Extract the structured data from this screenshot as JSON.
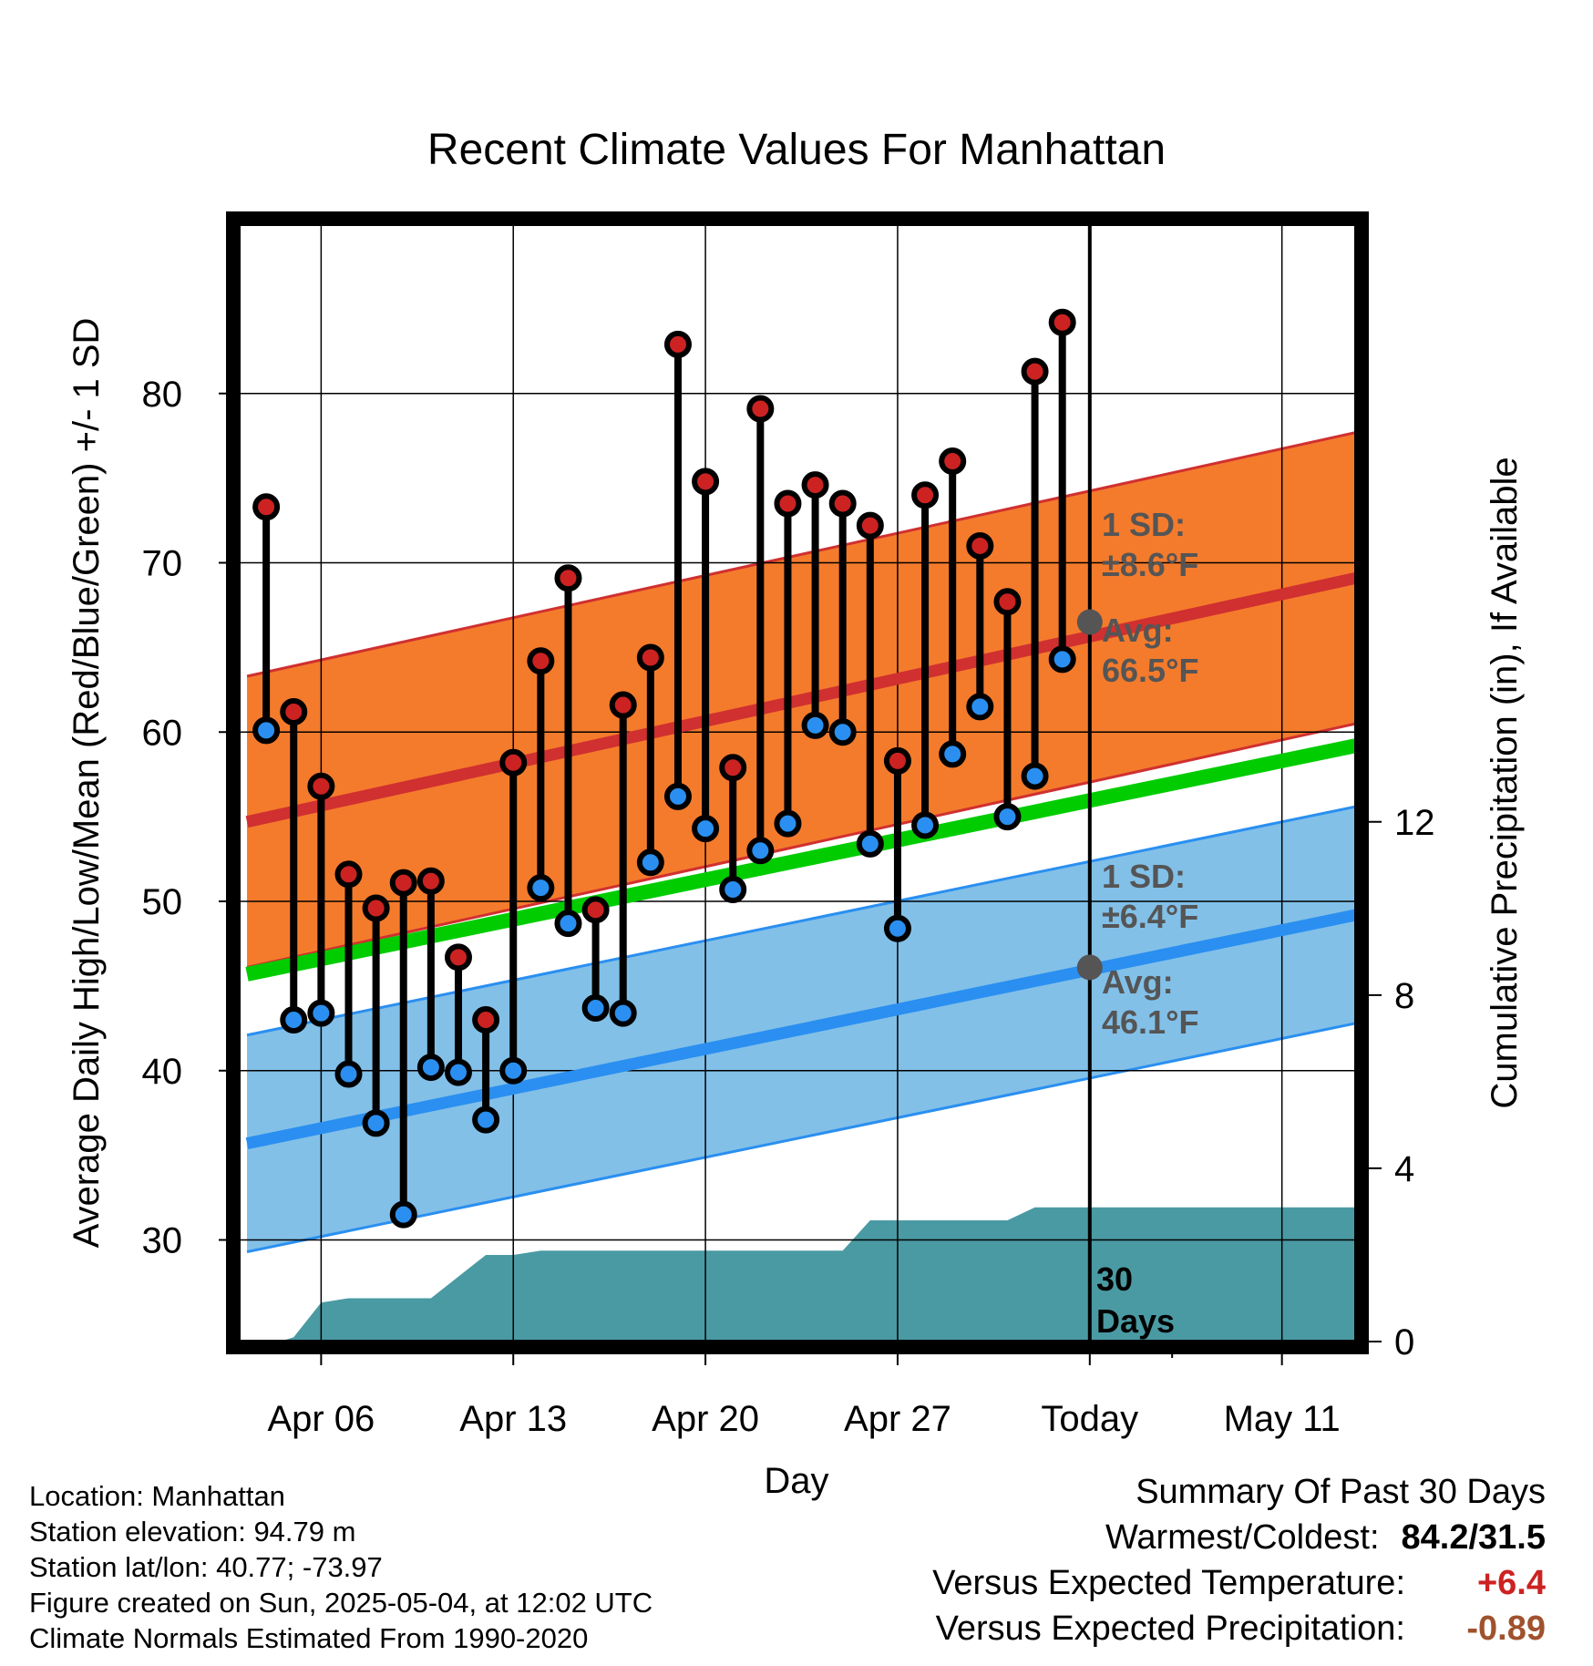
{
  "chart_data": {
    "type": "line",
    "title": "Recent Climate Values For Manhattan",
    "xlabel": "Day",
    "ylabel": "Average Daily High/Low/Mean (Red/Blue/Green) +/- 1 SD",
    "y2label": "Cumulative Precipitation (in), If Available",
    "ylim": [
      24,
      90
    ],
    "y2lim": [
      0,
      25.8
    ],
    "y_ticks": [
      30,
      40,
      50,
      60,
      70,
      80
    ],
    "y2_ticks": [
      0,
      4,
      8,
      12
    ],
    "x_range": [
      0,
      40.7
    ],
    "x_ticks": [
      {
        "day": 3,
        "label": "Apr 06"
      },
      {
        "day": 10,
        "label": "Apr 13"
      },
      {
        "day": 17,
        "label": "Apr 20"
      },
      {
        "day": 24,
        "label": "Apr 27"
      },
      {
        "day": 31,
        "label": "Today"
      },
      {
        "day": 38,
        "label": "May 11"
      }
    ],
    "normals": {
      "day_range": [
        0.3,
        40.7
      ],
      "high_avg": [
        54.7,
        69.1
      ],
      "high_sd": 8.6,
      "low_avg": [
        35.7,
        49.2
      ],
      "low_sd": 6.4,
      "mean": [
        45.7,
        59.2
      ],
      "colors": {
        "high_band": "#f47b2c",
        "high_avg_line": "#d03030",
        "low_band": "#82c0e8",
        "low_avg_line": "#2a8ff0",
        "mean_line": "#00cc00",
        "precip": "#4a9aa3",
        "high_dot": "#cc2222",
        "low_dot": "#2a8ff0",
        "today_avg_dot": "#555555"
      }
    },
    "today_marker": {
      "day": 31,
      "label_top": "30",
      "label_bottom": "Days"
    },
    "high_sd_label": {
      "line1": "1 SD:",
      "line2": "±8.6°F",
      "avg1": "Avg:",
      "avg2": "66.5°F",
      "avg_value": 66.5
    },
    "low_sd_label": {
      "line1": "1 SD:",
      "line2": "±6.4°F",
      "avg1": "Avg:",
      "avg2": "46.1°F",
      "avg_value": 46.1
    },
    "days": [
      {
        "day": 1,
        "high": 73.3,
        "low": 60.1
      },
      {
        "day": 2,
        "high": 61.2,
        "low": 43.0
      },
      {
        "day": 3,
        "high": 56.8,
        "low": 43.4
      },
      {
        "day": 4,
        "high": 51.6,
        "low": 39.8
      },
      {
        "day": 5,
        "high": 49.6,
        "low": 36.9
      },
      {
        "day": 6,
        "high": 51.1,
        "low": 31.5
      },
      {
        "day": 7,
        "high": 51.2,
        "low": 40.2
      },
      {
        "day": 8,
        "high": 46.7,
        "low": 39.9
      },
      {
        "day": 9,
        "high": 43.0,
        "low": 37.1
      },
      {
        "day": 10,
        "high": 58.2,
        "low": 40.0
      },
      {
        "day": 11,
        "high": 64.2,
        "low": 50.8
      },
      {
        "day": 12,
        "high": 69.1,
        "low": 48.7
      },
      {
        "day": 13,
        "high": 49.5,
        "low": 43.7
      },
      {
        "day": 14,
        "high": 61.6,
        "low": 43.4
      },
      {
        "day": 15,
        "high": 64.4,
        "low": 52.3
      },
      {
        "day": 16,
        "high": 82.9,
        "low": 56.2
      },
      {
        "day": 17,
        "high": 74.8,
        "low": 54.3
      },
      {
        "day": 18,
        "high": 57.9,
        "low": 50.7
      },
      {
        "day": 19,
        "high": 79.1,
        "low": 53.0
      },
      {
        "day": 20,
        "high": 73.5,
        "low": 54.6
      },
      {
        "day": 21,
        "high": 74.6,
        "low": 60.4
      },
      {
        "day": 22,
        "high": 73.5,
        "low": 60.0
      },
      {
        "day": 23,
        "high": 72.2,
        "low": 53.4
      },
      {
        "day": 24,
        "high": 58.3,
        "low": 48.4
      },
      {
        "day": 25,
        "high": 74.0,
        "low": 54.5
      },
      {
        "day": 26,
        "high": 76.0,
        "low": 58.7
      },
      {
        "day": 27,
        "high": 71.0,
        "low": 61.5
      },
      {
        "day": 28,
        "high": 67.7,
        "low": 55.0
      },
      {
        "day": 29,
        "high": 81.3,
        "low": 57.4
      },
      {
        "day": 30,
        "high": 84.2,
        "low": 64.3
      }
    ],
    "precip_cumulative": [
      [
        0.3,
        0
      ],
      [
        1.5,
        0
      ],
      [
        2.0,
        0.1
      ],
      [
        3.0,
        0.9
      ],
      [
        4.0,
        1.0
      ],
      [
        6.0,
        1.0
      ],
      [
        7.0,
        1.0
      ],
      [
        8.0,
        1.5
      ],
      [
        9.0,
        2.0
      ],
      [
        10.0,
        2.0
      ],
      [
        11.0,
        2.1
      ],
      [
        12.0,
        2.1
      ],
      [
        13.0,
        2.1
      ],
      [
        20.0,
        2.1
      ],
      [
        21.0,
        2.1
      ],
      [
        22.0,
        2.1
      ],
      [
        23.0,
        2.8
      ],
      [
        24.0,
        2.8
      ],
      [
        27.0,
        2.8
      ],
      [
        28.0,
        2.8
      ],
      [
        29.0,
        3.1
      ],
      [
        31.0,
        3.1
      ],
      [
        40.7,
        3.1
      ]
    ]
  },
  "footer_left": {
    "location": "Location: Manhattan",
    "elevation": "Station elevation: 94.79 m",
    "latlon": "Station lat/lon: 40.77; -73.97",
    "created": "Figure created on Sun, 2025-05-04, at 12:02 UTC",
    "normals": "Climate Normals Estimated From 1990-2020"
  },
  "summary": {
    "title": "Summary Of Past 30 Days",
    "warmest_label": "Warmest/Coldest:",
    "warmest_value": "84.2/31.5",
    "temp_label": "Versus Expected Temperature:",
    "temp_value": "+6.4",
    "temp_color": "#cc2222",
    "precip_label": "Versus Expected Precipitation:",
    "precip_value": "-0.89",
    "precip_color": "#a0522d"
  }
}
